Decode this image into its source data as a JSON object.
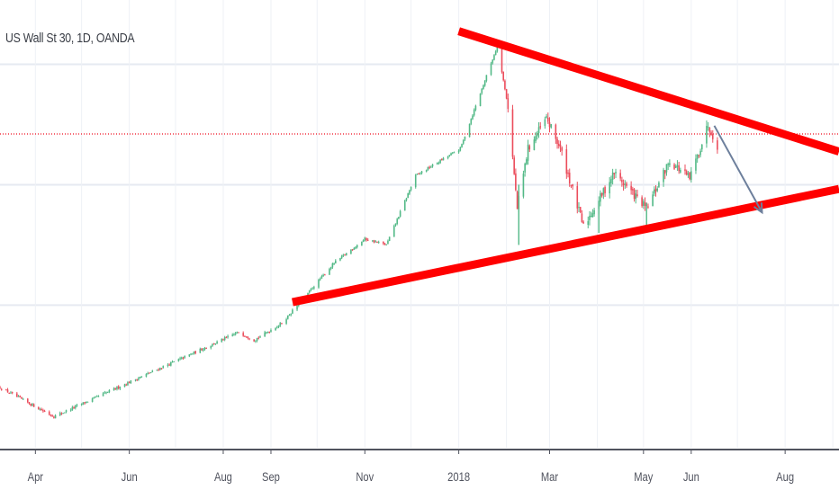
{
  "title": "US Wall St 30, 1D, OANDA",
  "chart_data": {
    "type": "candlestick",
    "title": "US Wall St 30, 1D, OANDA",
    "x_ticks": [
      "Apr",
      "Jun",
      "Aug",
      "Sep",
      "Nov",
      "2018",
      "Mar",
      "May",
      "Jun",
      "Aug"
    ],
    "x_range": [
      "2017-03-09",
      "2018-09-05"
    ],
    "grid": true,
    "price_line": {
      "color": "#f23645",
      "style": "dotted"
    },
    "anchors": [
      {
        "date": "2017-03-09",
        "value": 20930
      },
      {
        "date": "2017-04-13",
        "value": 20450
      },
      {
        "date": "2017-05-31",
        "value": 21010
      },
      {
        "date": "2017-07-25",
        "value": 21650
      },
      {
        "date": "2017-08-11",
        "value": 21850
      },
      {
        "date": "2017-08-21",
        "value": 21720
      },
      {
        "date": "2017-09-08",
        "value": 22000
      },
      {
        "date": "2017-10-12",
        "value": 23000
      },
      {
        "date": "2017-11-01",
        "value": 23400
      },
      {
        "date": "2017-11-15",
        "value": 23300
      },
      {
        "date": "2017-12-04",
        "value": 24450
      },
      {
        "date": "2018-01-02",
        "value": 24900
      },
      {
        "date": "2018-01-26",
        "value": 26600
      },
      {
        "date": "2018-02-02",
        "value": 25600
      },
      {
        "date": "2018-02-08",
        "value": 23900
      },
      {
        "date": "2018-02-15",
        "value": 24900
      },
      {
        "date": "2018-02-27",
        "value": 25400
      },
      {
        "date": "2018-03-08",
        "value": 24900
      },
      {
        "date": "2018-03-23",
        "value": 23600
      },
      {
        "date": "2018-04-12",
        "value": 24500
      },
      {
        "date": "2018-05-03",
        "value": 23900
      },
      {
        "date": "2018-05-18",
        "value": 24700
      },
      {
        "date": "2018-05-31",
        "value": 24400
      },
      {
        "date": "2018-06-12",
        "value": 25300
      },
      {
        "date": "2018-06-18",
        "value": 24950
      }
    ],
    "spikes": [
      {
        "date": "2018-02-09",
        "low": 23300,
        "high": 24300
      },
      {
        "date": "2018-04-02",
        "low": 23500,
        "high": 24000
      },
      {
        "date": "2018-05-03",
        "low": 23600,
        "high": 24000
      }
    ],
    "annotations": [
      {
        "type": "trendline",
        "color": "#ff0000",
        "from": {
          "date": "2018-01-01",
          "value": 26850
        },
        "to": {
          "date": "2018-09-05",
          "value": 24850
        }
      },
      {
        "type": "trendline",
        "color": "#ff0000",
        "from": {
          "date": "2017-09-15",
          "value": 22350
        },
        "to": {
          "date": "2018-09-05",
          "value": 24230
        }
      },
      {
        "type": "arrow",
        "color": "#6d7f9c",
        "from": {
          "date": "2018-06-16",
          "value": 25280
        },
        "to": {
          "date": "2018-07-17",
          "value": 23840
        }
      }
    ]
  }
}
